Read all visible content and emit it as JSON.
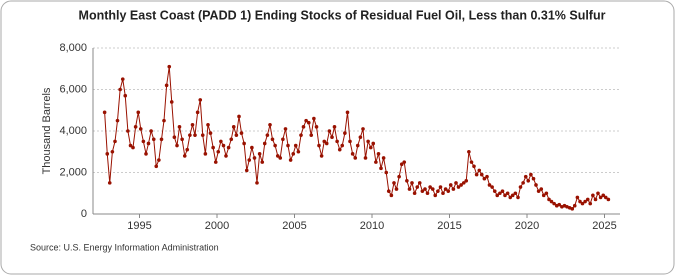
{
  "chart_data": {
    "type": "line",
    "title": "Monthly East Coast (PADD 1) Ending Stocks of Residual Fuel Oil, Less than 0.31% Sulfur",
    "y_label": "Thousand Barrels",
    "source": "Source: U.S. Energy Information Administration",
    "color": "#991100",
    "x": [
      1992.75,
      1992.92,
      1993.08,
      1993.25,
      1993.42,
      1993.58,
      1993.75,
      1993.92,
      1994.08,
      1994.25,
      1994.42,
      1994.58,
      1994.75,
      1994.92,
      1995.08,
      1995.25,
      1995.42,
      1995.58,
      1995.75,
      1995.92,
      1996.08,
      1996.25,
      1996.42,
      1996.58,
      1996.75,
      1996.92,
      1997.08,
      1997.25,
      1997.42,
      1997.58,
      1997.75,
      1997.92,
      1998.08,
      1998.25,
      1998.42,
      1998.58,
      1998.75,
      1998.92,
      1999.08,
      1999.25,
      1999.42,
      1999.58,
      1999.75,
      1999.92,
      2000.08,
      2000.25,
      2000.42,
      2000.58,
      2000.75,
      2000.92,
      2001.08,
      2001.25,
      2001.42,
      2001.58,
      2001.75,
      2001.92,
      2002.08,
      2002.25,
      2002.42,
      2002.58,
      2002.75,
      2002.92,
      2003.08,
      2003.25,
      2003.42,
      2003.58,
      2003.75,
      2003.92,
      2004.08,
      2004.25,
      2004.42,
      2004.58,
      2004.75,
      2004.92,
      2005.08,
      2005.25,
      2005.42,
      2005.58,
      2005.75,
      2005.92,
      2006.08,
      2006.25,
      2006.42,
      2006.58,
      2006.75,
      2006.92,
      2007.08,
      2007.25,
      2007.42,
      2007.58,
      2007.75,
      2007.92,
      2008.08,
      2008.25,
      2008.42,
      2008.58,
      2008.75,
      2008.92,
      2009.08,
      2009.25,
      2009.42,
      2009.58,
      2009.75,
      2009.92,
      2010.08,
      2010.25,
      2010.42,
      2010.58,
      2010.75,
      2010.92,
      2011.08,
      2011.25,
      2011.42,
      2011.58,
      2011.75,
      2011.92,
      2012.08,
      2012.25,
      2012.42,
      2012.58,
      2012.75,
      2012.92,
      2013.08,
      2013.25,
      2013.42,
      2013.58,
      2013.75,
      2013.92,
      2014.08,
      2014.25,
      2014.42,
      2014.58,
      2014.75,
      2014.92,
      2015.08,
      2015.25,
      2015.42,
      2015.58,
      2015.75,
      2015.92,
      2016.08,
      2016.25,
      2016.42,
      2016.58,
      2016.75,
      2016.92,
      2017.08,
      2017.25,
      2017.42,
      2017.58,
      2017.75,
      2017.92,
      2018.08,
      2018.25,
      2018.42,
      2018.58,
      2018.75,
      2018.92,
      2019.08,
      2019.25,
      2019.42,
      2019.58,
      2019.75,
      2019.92,
      2020.08,
      2020.25,
      2020.42,
      2020.58,
      2020.75,
      2020.92,
      2021.08,
      2021.25,
      2021.42,
      2021.58,
      2021.75,
      2021.92,
      2022.08,
      2022.25,
      2022.42,
      2022.58,
      2022.75,
      2022.92,
      2023.08,
      2023.25,
      2023.42,
      2023.58,
      2023.75,
      2023.92,
      2024.08,
      2024.25,
      2024.42,
      2024.58,
      2024.75,
      2024.92,
      2025.08,
      2025.25
    ],
    "values": [
      4900,
      2900,
      1500,
      3000,
      3500,
      4500,
      6000,
      6500,
      5700,
      4000,
      3300,
      3200,
      4200,
      4900,
      4100,
      3500,
      2900,
      3400,
      4000,
      3600,
      2300,
      2600,
      3600,
      4500,
      6200,
      7100,
      5400,
      3700,
      3300,
      4200,
      3600,
      2800,
      3100,
      3800,
      4300,
      3800,
      4900,
      5500,
      3800,
      2900,
      4300,
      3900,
      3200,
      2500,
      3000,
      3500,
      3300,
      2800,
      3200,
      3600,
      4200,
      3800,
      4700,
      3900,
      3400,
      2100,
      2600,
      3200,
      2700,
      1500,
      2900,
      2500,
      3400,
      3800,
      4300,
      3600,
      3300,
      2800,
      2700,
      3600,
      4100,
      3300,
      2600,
      2900,
      3300,
      3000,
      3800,
      4200,
      4500,
      4400,
      3800,
      4600,
      4200,
      3300,
      2800,
      3500,
      3400,
      4000,
      3700,
      4200,
      3500,
      3100,
      3300,
      3900,
      4900,
      3500,
      2900,
      2700,
      3300,
      3700,
      4100,
      2700,
      3500,
      3200,
      3400,
      2500,
      2900,
      2200,
      2700,
      2000,
      1100,
      900,
      1500,
      1200,
      1800,
      2400,
      2500,
      1600,
      1200,
      1500,
      1000,
      1300,
      1500,
      1100,
      1200,
      1000,
      1300,
      1200,
      900,
      1100,
      1300,
      1000,
      1200,
      1100,
      1400,
      1200,
      1500,
      1300,
      1400,
      1500,
      1600,
      3000,
      2500,
      2300,
      1900,
      2100,
      1900,
      1700,
      1800,
      1400,
      1300,
      1100,
      900,
      1000,
      1100,
      900,
      1000,
      800,
      900,
      1000,
      800,
      1300,
      1500,
      1800,
      1600,
      1900,
      1700,
      1400,
      1100,
      1200,
      900,
      1000,
      700,
      600,
      500,
      400,
      450,
      350,
      400,
      350,
      300,
      250,
      400,
      800,
      600,
      500,
      600,
      700,
      500,
      900,
      700,
      1000,
      800,
      900,
      800,
      700
    ],
    "xlim": [
      1992,
      2026
    ],
    "xticks": [
      1995,
      2000,
      2005,
      2010,
      2015,
      2020,
      2025
    ],
    "ylim": [
      0,
      8000
    ],
    "yticks": [
      0,
      {
        "value": 2000,
        "label": "2,000"
      },
      {
        "value": 4000,
        "label": "4,000"
      },
      {
        "value": 6000,
        "label": "6,000"
      },
      {
        "value": 8000,
        "label": "8,000"
      }
    ],
    "grid": true
  }
}
